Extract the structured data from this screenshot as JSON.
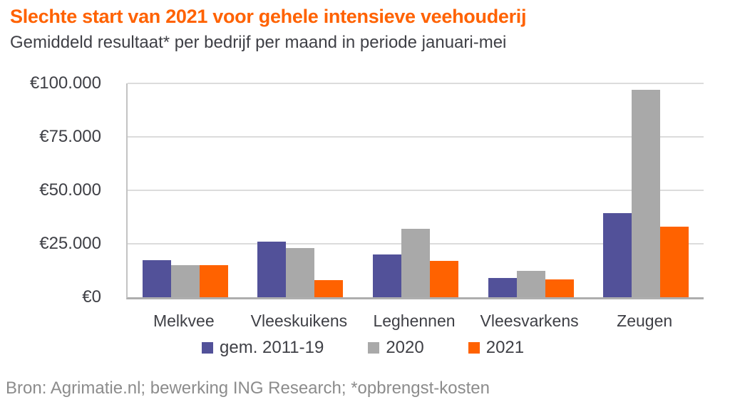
{
  "header": {
    "title": "Slechte start van 2021 voor gehele intensieve veehouderij",
    "subtitle": "Gemiddeld resultaat* per bedrijf per maand in periode januari-mei",
    "title_color": "#FF6200"
  },
  "chart_data": {
    "type": "bar",
    "title": "Slechte start van 2021 voor gehele intensieve veehouderij",
    "subtitle": "Gemiddeld resultaat* per bedrijf per maand in periode januari-mei",
    "categories": [
      "Melkvee",
      "Vleeskuikens",
      "Leghennen",
      "Vleesvarkens",
      "Zeugen"
    ],
    "series": [
      {
        "name": "gem. 2011-19",
        "color": "#525199",
        "values": [
          17500,
          26000,
          20000,
          9000,
          39500
        ]
      },
      {
        "name": "2020",
        "color": "#A9A9A9",
        "values": [
          15000,
          23000,
          32000,
          12500,
          97000
        ]
      },
      {
        "name": "2021",
        "color": "#FF6200",
        "values": [
          15000,
          8000,
          17000,
          8500,
          33000
        ]
      }
    ],
    "y_ticks": [
      {
        "value": 0,
        "label": "€0"
      },
      {
        "value": 25000,
        "label": "€25.000"
      },
      {
        "value": 50000,
        "label": "€50.000"
      },
      {
        "value": 75000,
        "label": "€75.000"
      },
      {
        "value": 100000,
        "label": "€100.000"
      }
    ],
    "ylim": [
      0,
      100000
    ],
    "ylabel": "",
    "xlabel": "",
    "grid": true,
    "legend_position": "bottom"
  },
  "footer": {
    "source": "Bron: Agrimatie.nl; bewerking ING Research; *opbrengst-kosten"
  }
}
